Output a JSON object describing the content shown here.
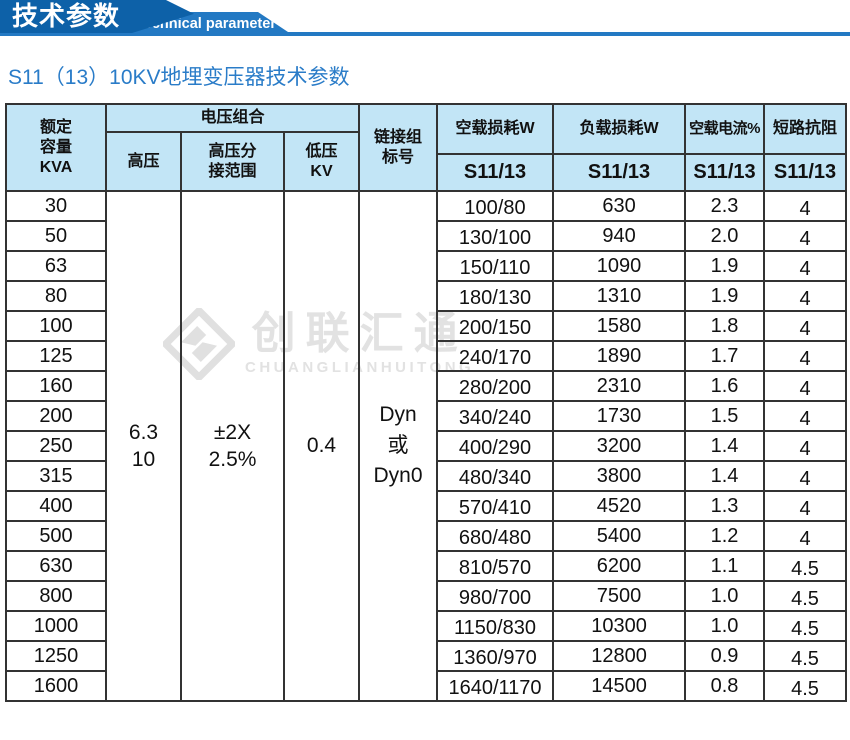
{
  "banner": {
    "title_cn": "技术参数",
    "title_en": "Technical parameter"
  },
  "page_title": "S11（13）10KV地埋变压器技术参数",
  "watermark": {
    "logo": "chuanglian-diamond-logo",
    "text_cn": "创联汇通",
    "text_en": "CHUANGLIANHUITONG"
  },
  "colors": {
    "banner_dark": "#0d61a8",
    "banner_ribbon": "#2379c3",
    "title_blue": "#2a7cc8",
    "header_bg": "#c2e5f6",
    "border": "#333333",
    "watermark_gray": "#e2e2e2"
  },
  "table": {
    "header": {
      "col_capacity": "额定\n容量\nKVA",
      "group_voltage": "电压组合",
      "col_hv": "高压",
      "col_hv_tap": "高压分\n接范围",
      "col_lv": "低压\nKV",
      "col_vector": "链接组\n标号",
      "col_noload_loss": "空载损耗W",
      "col_load_loss": "负载损耗W",
      "col_noload_current": "空载电流%",
      "col_impedance": "短路抗阻",
      "sub_model": "S11/13"
    },
    "merged": {
      "hv": "6.3\n10",
      "hv_tap": "±2X\n2.5%",
      "lv": "0.4",
      "vector": "Dyn\n或\nDyn0"
    },
    "rows": [
      [
        "30",
        "100/80",
        "630",
        "2.3",
        "4"
      ],
      [
        "50",
        "130/100",
        "940",
        "2.0",
        "4"
      ],
      [
        "63",
        "150/110",
        "1090",
        "1.9",
        "4"
      ],
      [
        "80",
        "180/130",
        "1310",
        "1.9",
        "4"
      ],
      [
        "100",
        "200/150",
        "1580",
        "1.8",
        "4"
      ],
      [
        "125",
        "240/170",
        "1890",
        "1.7",
        "4"
      ],
      [
        "160",
        "280/200",
        "2310",
        "1.6",
        "4"
      ],
      [
        "200",
        "340/240",
        "1730",
        "1.5",
        "4"
      ],
      [
        "250",
        "400/290",
        "3200",
        "1.4",
        "4"
      ],
      [
        "315",
        "480/340",
        "3800",
        "1.4",
        "4"
      ],
      [
        "400",
        "570/410",
        "4520",
        "1.3",
        "4"
      ],
      [
        "500",
        "680/480",
        "5400",
        "1.2",
        "4"
      ],
      [
        "630",
        "810/570",
        "6200",
        "1.1",
        "4.5"
      ],
      [
        "800",
        "980/700",
        "7500",
        "1.0",
        "4.5"
      ],
      [
        "1000",
        "1150/830",
        "10300",
        "1.0",
        "4.5"
      ],
      [
        "1250",
        "1360/970",
        "12800",
        "0.9",
        "4.5"
      ],
      [
        "1600",
        "1640/1170",
        "14500",
        "0.8",
        "4.5"
      ]
    ]
  }
}
